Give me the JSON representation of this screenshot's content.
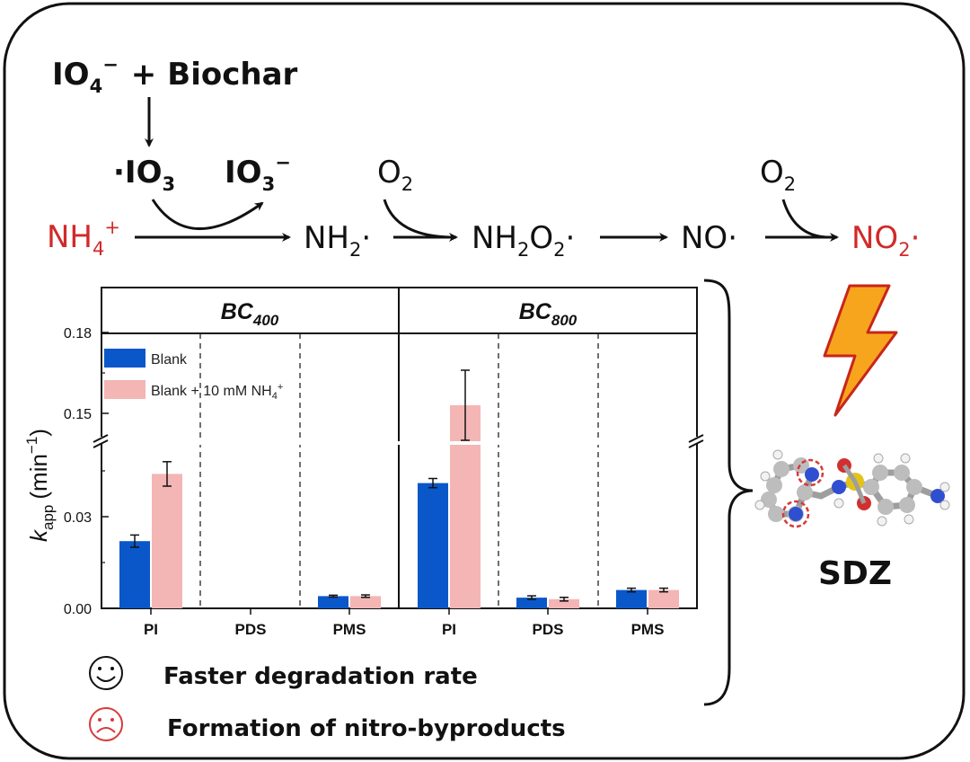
{
  "scheme": {
    "reactant_periodate": "IO",
    "periodate_sub": "4",
    "periodate_sup": "−",
    "reactant_plus": "+",
    "reactant_biochar": "Biochar",
    "iodyl_dot": "·",
    "iodyl": "IO",
    "iodyl_sub": "3",
    "iodate": "IO",
    "iodate_sub": "3",
    "iodate_sup": "−",
    "ammonium": "NH",
    "ammonium_sub": "4",
    "ammonium_sup": "+",
    "amino": "NH",
    "amino_sub": "2",
    "amino_dot": "·",
    "oxygen1": "O",
    "oxygen1_sub": "2",
    "peroxy": "NH",
    "peroxy_sub1": "2",
    "peroxy_o": "O",
    "peroxy_sub2": "2",
    "peroxy_dot": "·",
    "nitric": "NO·",
    "oxygen2": "O",
    "oxygen2_sub": "2",
    "nitrogen_dioxide": "NO",
    "nitrogen_dioxide_sub": "2",
    "nitrogen_dioxide_dot": "·",
    "colors": {
      "ammonium": "#d12a2a",
      "no2": "#d12a2a",
      "text": "#111111"
    }
  },
  "chart_data": {
    "type": "bar",
    "panels": [
      {
        "title": "BC",
        "title_sub": "400"
      },
      {
        "title": "BC",
        "title_sub": "800"
      }
    ],
    "categories": [
      "PI",
      "PDS",
      "PMS",
      "PI",
      "PDS",
      "PMS"
    ],
    "series": [
      {
        "name": "Blank",
        "color": "#0a57c9",
        "values": [
          0.022,
          0,
          0.004,
          0.041,
          0.0035,
          0.006
        ],
        "errors": [
          0.002,
          0,
          0.0003,
          0.0015,
          0.0006,
          0.0006
        ]
      },
      {
        "name": "Blank + 10 mM NH",
        "name_sub": "4",
        "name_sup": "+",
        "color": "#f4b5b5",
        "values": [
          0.044,
          0,
          0.004,
          0.153,
          0.003,
          0.006
        ],
        "errors": [
          0.004,
          0,
          0.0004,
          0.013,
          0.0006,
          0.0006
        ]
      }
    ],
    "ylabel": "k",
    "ylabel_sub": "app",
    "ylabel_unit": "(min",
    "ylabel_unit_sup": "−1",
    "ylabel_close": ")",
    "yticks": [
      "0.00",
      "0.03",
      "0.15",
      "0.18"
    ],
    "ylim": [
      0,
      0.19
    ],
    "axis_break": [
      0.055,
      0.14
    ],
    "legend_position": "top-left"
  },
  "molecule": {
    "label": "SDZ",
    "colors": {
      "carbon": "#bdbdbd",
      "nitrogen": "#2f4fd0",
      "sulfur": "#e3c21a",
      "oxygen": "#d23030",
      "hydrogen": "#f2f2f2",
      "highlight": "#d83a3a"
    }
  },
  "notes": {
    "positive_icon": "smiley-face-icon",
    "positive_text": "Faster degradation rate",
    "negative_icon": "sad-face-icon",
    "negative_text": "Formation of nitro-byproducts",
    "lightning_icon": "lightning-bolt-icon"
  }
}
